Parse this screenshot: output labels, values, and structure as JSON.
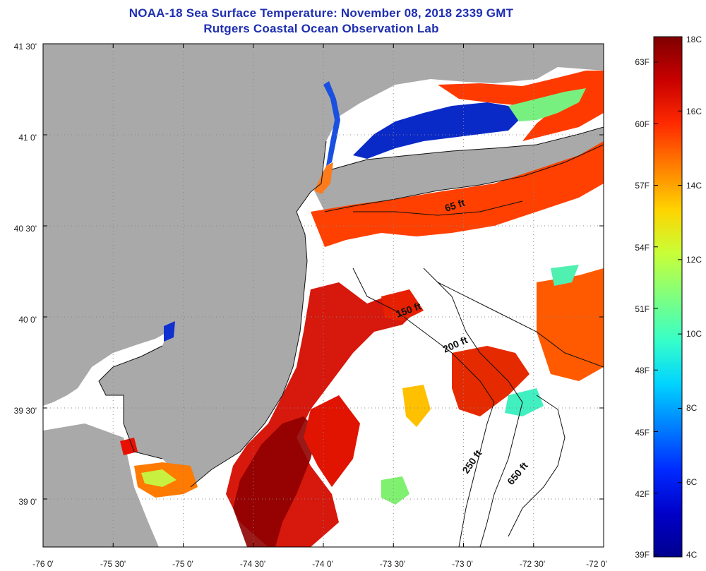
{
  "title": {
    "line1": "NOAA-18 Sea Surface Temperature:  November 08, 2018 2339 GMT",
    "line2": "Rutgers Coastal Ocean Observation Lab"
  },
  "axes": {
    "x_ticks": [
      "-76 0'",
      "-75 30'",
      "-75 0'",
      "-74 30'",
      "-74 0'",
      "-73 30'",
      "-73 0'",
      "-72 30'",
      "-72 0'"
    ],
    "y_ticks": [
      "41 30'",
      "41 0'",
      "40 30'",
      "40 0'",
      "39 30'",
      "39 0'"
    ]
  },
  "depth_contours": {
    "labels": [
      "65 ft",
      "150 ft",
      "200 ft",
      "250 ft",
      "650 ft"
    ]
  },
  "colorbar": {
    "celsius_labels": [
      "18C",
      "16C",
      "14C",
      "12C",
      "10C",
      "8C",
      "6C",
      "4C"
    ],
    "fahrenheit_labels": [
      "63F",
      "60F",
      "57F",
      "54F",
      "51F",
      "48F",
      "45F",
      "42F",
      "39F"
    ],
    "colors": [
      "#7f0000",
      "#c80000",
      "#ff2a00",
      "#ff7f00",
      "#ffd400",
      "#c8ff38",
      "#7fff7f",
      "#38ffc8",
      "#00d4ff",
      "#007fff",
      "#002aff",
      "#0000c8",
      "#00008f"
    ]
  },
  "colors": {
    "land": "#a9a9a9",
    "no_data": "#ffffff"
  }
}
